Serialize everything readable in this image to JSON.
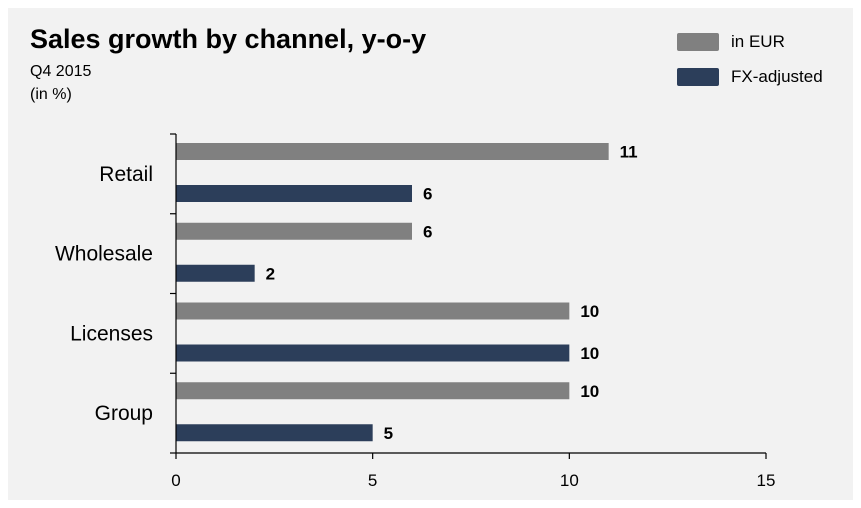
{
  "chart_data": {
    "type": "bar",
    "orientation": "horizontal",
    "title": "Sales growth by channel, y-o-y",
    "subtitle": "Q4 2015",
    "unit_note": "(in %)",
    "categories": [
      "Retail",
      "Wholesale",
      "Licenses",
      "Group"
    ],
    "series": [
      {
        "name": "in EUR",
        "color": "#808080",
        "values": [
          11,
          6,
          10,
          10
        ]
      },
      {
        "name": "FX-adjusted",
        "color": "#2c3e5a",
        "values": [
          6,
          2,
          10,
          5
        ]
      }
    ],
    "xlim": [
      0,
      15
    ],
    "xticks": [
      "0",
      "5",
      "10",
      "15"
    ],
    "xlabel": "",
    "ylabel": "",
    "grid": false,
    "legend_position": "top-right",
    "data_labels": true
  },
  "colors": {
    "background": "#f2f2f2",
    "axis": "#000000"
  }
}
